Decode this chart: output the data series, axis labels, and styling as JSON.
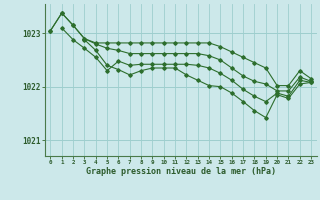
{
  "background_color": "#cce8ea",
  "grid_color": "#9ecece",
  "line_color": "#2d6e2d",
  "text_color": "#2d5c2d",
  "xlabel": "Graphe pression niveau de la mer (hPa)",
  "ylim": [
    1020.7,
    1023.55
  ],
  "xlim": [
    -0.5,
    23.5
  ],
  "yticks": [
    1021,
    1022,
    1023
  ],
  "xticks": [
    0,
    1,
    2,
    3,
    4,
    5,
    6,
    7,
    8,
    9,
    10,
    11,
    12,
    13,
    14,
    15,
    16,
    17,
    18,
    19,
    20,
    21,
    22,
    23
  ],
  "series": [
    [
      1023.05,
      1023.38,
      1023.15,
      1022.9,
      1022.82,
      1022.82,
      1022.82,
      1022.82,
      1022.82,
      1022.82,
      1022.82,
      1022.82,
      1022.82,
      1022.82,
      1022.82,
      1022.75,
      1022.65,
      1022.55,
      1022.45,
      1022.35,
      1022.02,
      1022.02,
      1022.3,
      1022.15
    ],
    [
      1023.05,
      1023.38,
      1023.15,
      1022.9,
      1022.8,
      1022.72,
      1022.68,
      1022.62,
      1022.62,
      1022.62,
      1022.62,
      1022.62,
      1022.62,
      1022.62,
      1022.58,
      1022.5,
      1022.35,
      1022.2,
      1022.1,
      1022.05,
      1021.92,
      1021.92,
      1022.18,
      1022.1
    ],
    [
      null,
      1023.1,
      1022.88,
      1022.72,
      1022.55,
      1022.3,
      1022.48,
      1022.4,
      1022.42,
      1022.42,
      1022.42,
      1022.42,
      1022.42,
      1022.4,
      1022.35,
      1022.25,
      1022.12,
      1021.95,
      1021.82,
      1021.72,
      1021.88,
      1021.82,
      1022.12,
      1022.08
    ],
    [
      null,
      null,
      null,
      1022.88,
      1022.68,
      1022.4,
      1022.32,
      1022.22,
      1022.3,
      1022.35,
      1022.35,
      1022.35,
      1022.22,
      1022.12,
      1022.02,
      1022.0,
      1021.88,
      1021.72,
      1021.55,
      1021.42,
      1021.85,
      1021.78,
      1022.05,
      1022.08
    ]
  ]
}
